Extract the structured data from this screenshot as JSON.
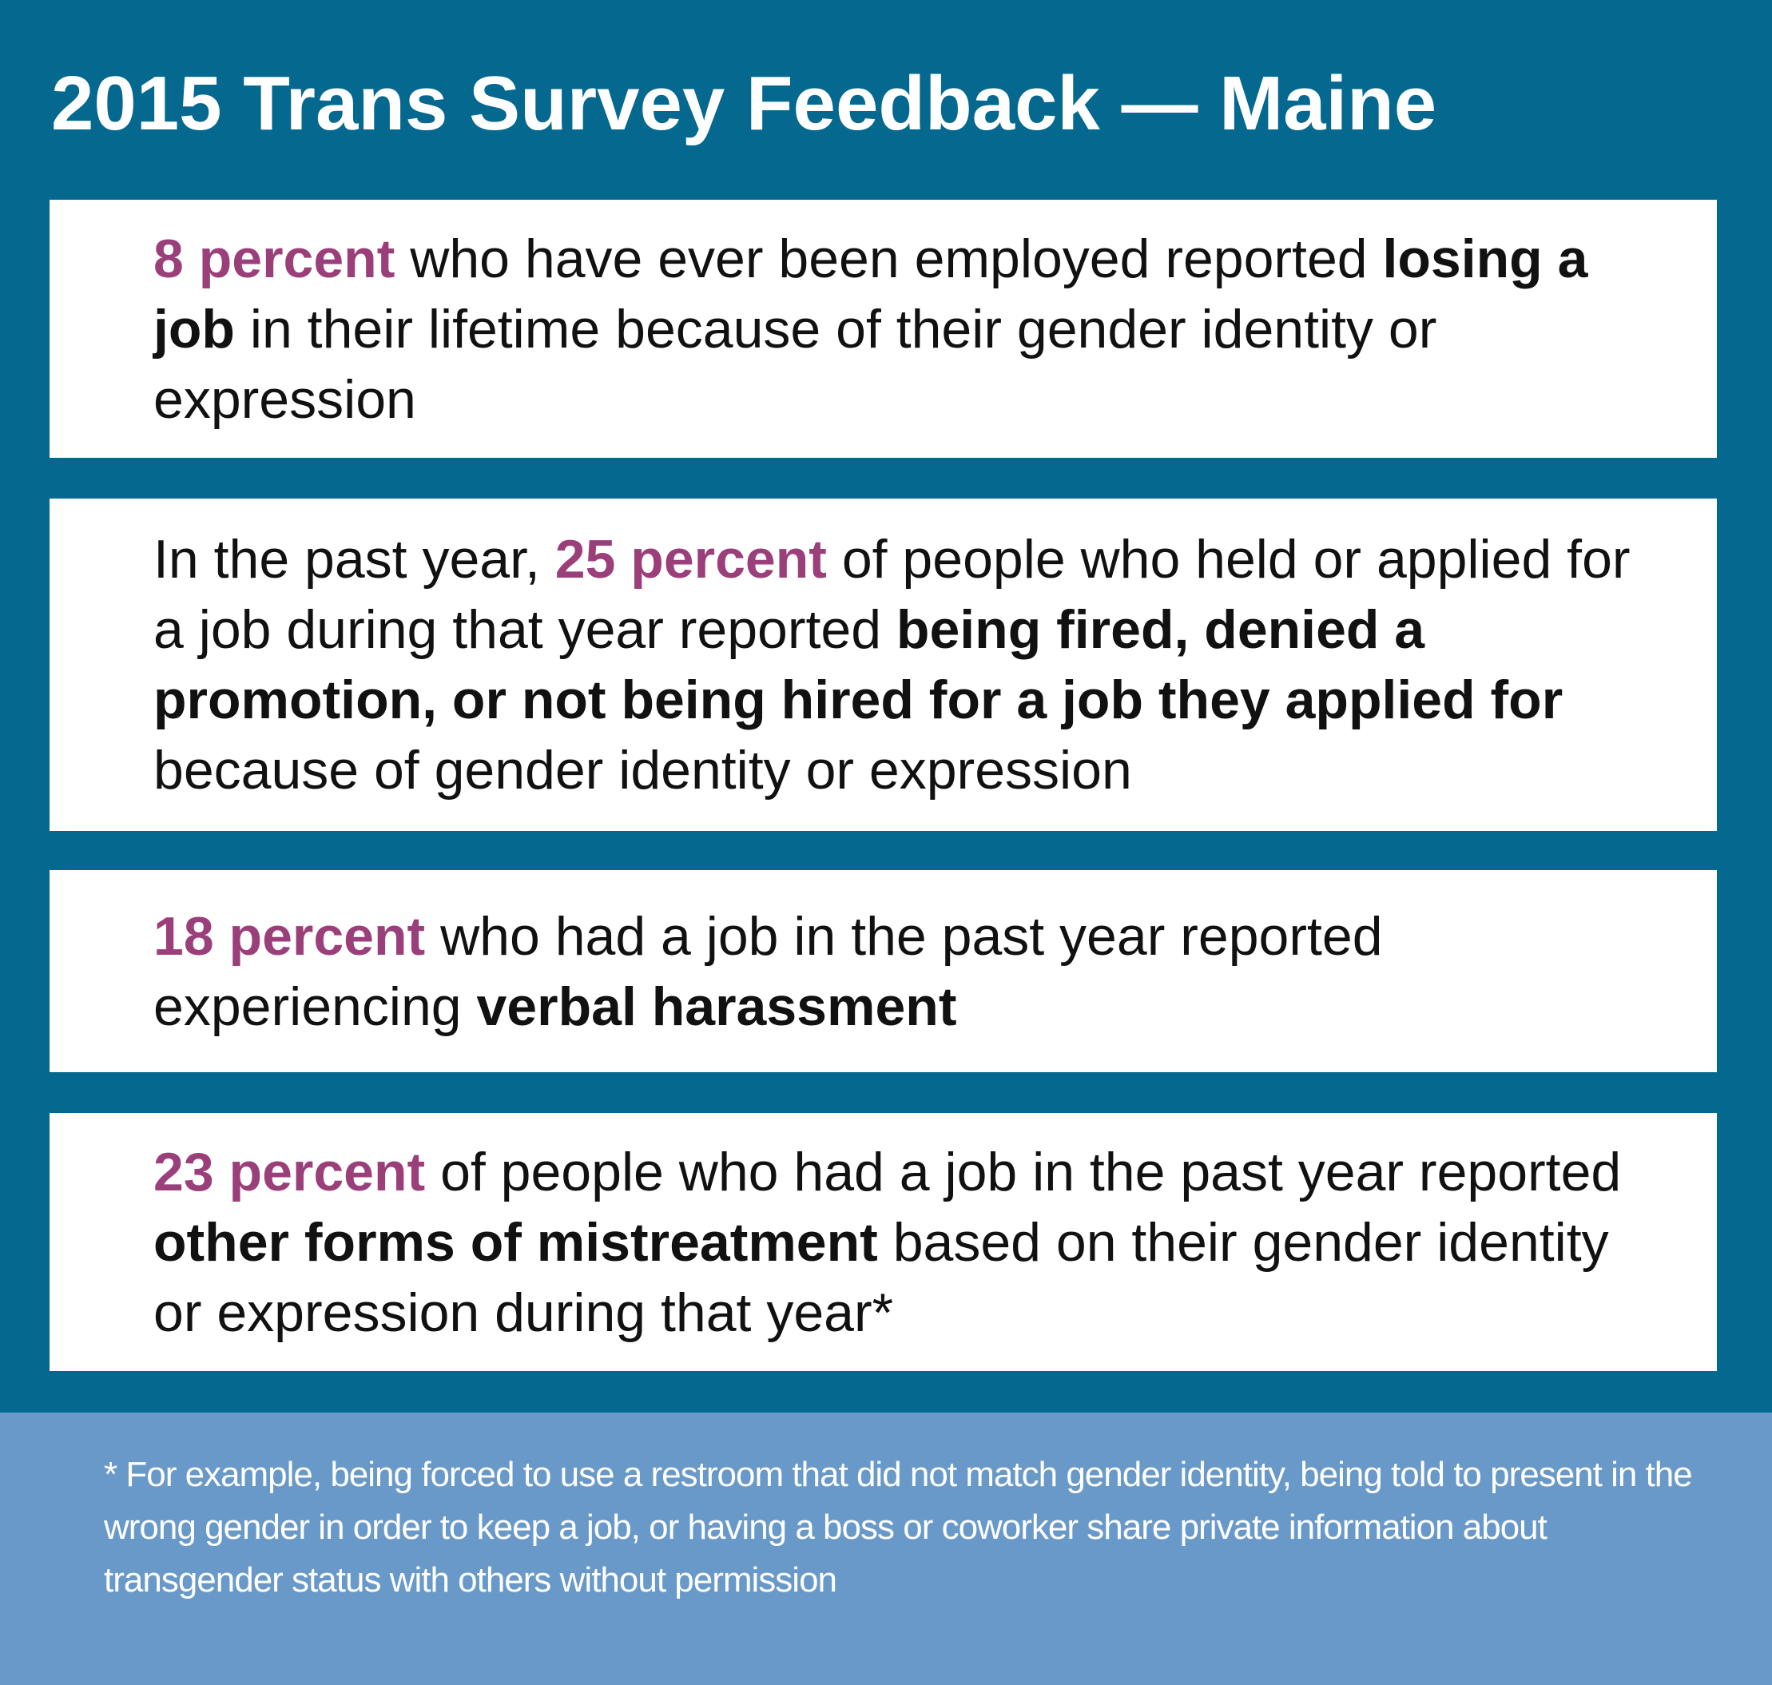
{
  "title": "2015 Trans Survey Feedback — Maine",
  "cards": [
    {
      "runs": [
        {
          "highlight": "8 percent"
        },
        {
          "text": " who have ever been employed reported "
        },
        {
          "bold": "losing a job"
        },
        {
          "text": " in their lifetime because of their gender identity or expression"
        }
      ]
    },
    {
      "runs": [
        {
          "text": "In the past year, "
        },
        {
          "highlight": "25 percent"
        },
        {
          "text": " of people who held or applied for a job during that year reported "
        },
        {
          "bold": "being fired, denied a promotion, or not being hired for a job they applied for"
        },
        {
          "text": " because of gender identity or expression"
        }
      ]
    },
    {
      "runs": [
        {
          "highlight": "18 percent"
        },
        {
          "text": " who had a job in the past year reported experiencing "
        },
        {
          "bold": "verbal harassment"
        }
      ]
    },
    {
      "runs": [
        {
          "highlight": "23 percent"
        },
        {
          "text": " of people who had a job in the past year reported "
        },
        {
          "bold": "other forms of mistreatment"
        },
        {
          "text": " based on their gender identity or expression during that year*"
        }
      ]
    }
  ],
  "footnote": "* For example, being forced to use a restroom that did not match gender identity, being told to present in the wrong gender in order to keep a job, or having a boss or coworker share private information about transgender status with others without permission"
}
